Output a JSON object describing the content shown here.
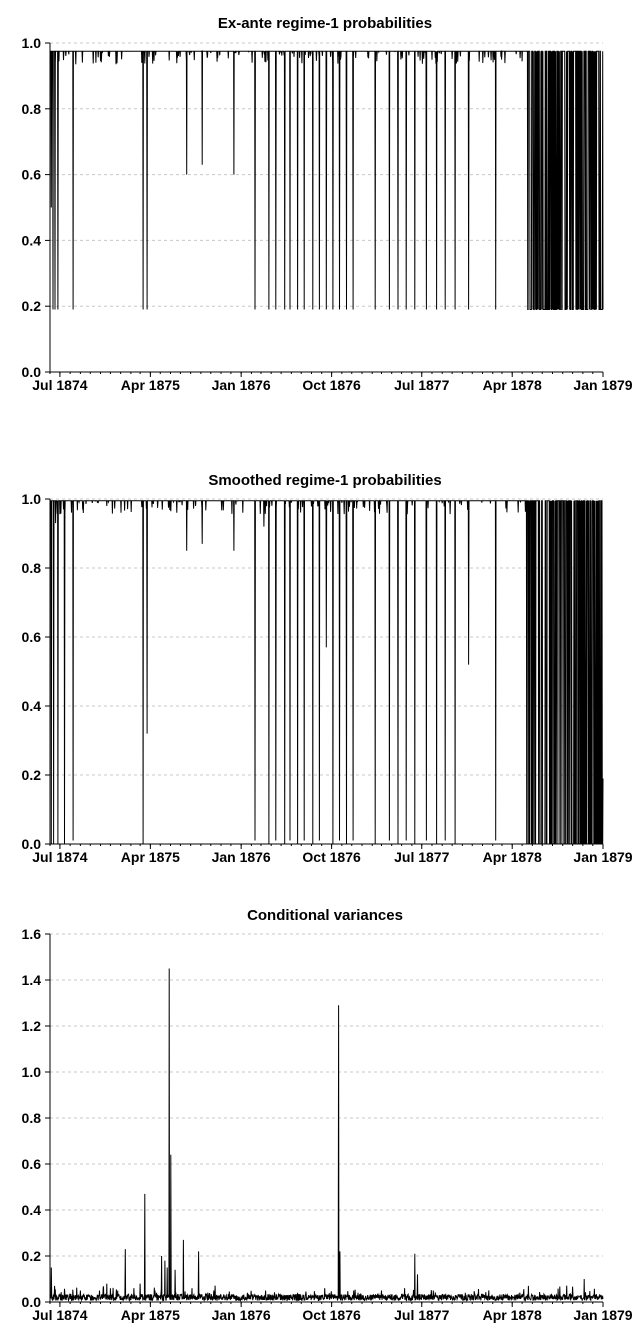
{
  "chart_data": [
    {
      "type": "line",
      "title": "Ex-ante regime-1 probabilities",
      "x_ticks": [
        "Jul 1874",
        "Apr 1875",
        "Jan 1876",
        "Oct 1876",
        "Jul 1877",
        "Apr 1878",
        "Jan 1879"
      ],
      "y_ticks": [
        "0.0",
        "0.2",
        "0.4",
        "0.6",
        "0.8",
        "1.0"
      ],
      "ylim": [
        0,
        1.0
      ],
      "xlim": [
        "1874-06",
        "1879-01"
      ],
      "grid": true,
      "series": [
        {
          "baseline": 0.975,
          "drops": [
            [
              "1874-06-05",
              0.5
            ],
            [
              "1874-06-10",
              0.19
            ],
            [
              "1874-06-16",
              0.19
            ],
            [
              "1874-06-25",
              0.19
            ],
            [
              "1874-08-10",
              0.19
            ],
            [
              "1875-03-10",
              0.19
            ],
            [
              "1875-03-22",
              0.19
            ],
            [
              "1875-07-20",
              0.6
            ],
            [
              "1875-09-05",
              0.63
            ],
            [
              "1875-12-10",
              0.6
            ],
            [
              "1876-02-12",
              0.19
            ],
            [
              "1876-03-25",
              0.19
            ],
            [
              "1876-04-15",
              0.19
            ],
            [
              "1876-05-12",
              0.19
            ],
            [
              "1876-05-28",
              0.19
            ],
            [
              "1876-06-20",
              0.19
            ],
            [
              "1876-07-10",
              0.19
            ],
            [
              "1876-08-05",
              0.19
            ],
            [
              "1876-08-25",
              0.19
            ],
            [
              "1876-09-15",
              0.19
            ],
            [
              "1876-10-05",
              0.19
            ],
            [
              "1876-10-25",
              0.19
            ],
            [
              "1876-11-15",
              0.19
            ],
            [
              "1876-12-05",
              0.19
            ],
            [
              "1877-02-10",
              0.19
            ],
            [
              "1877-03-25",
              0.19
            ],
            [
              "1877-04-20",
              0.19
            ],
            [
              "1877-05-15",
              0.19
            ],
            [
              "1877-06-10",
              0.19
            ],
            [
              "1877-07-15",
              0.19
            ],
            [
              "1877-08-15",
              0.19
            ],
            [
              "1877-09-10",
              0.19
            ],
            [
              "1877-10-10",
              0.19
            ],
            [
              "1877-11-20",
              0.19
            ],
            [
              "1878-02-10",
              0.19
            ]
          ],
          "dense_oscillation": {
            "from": "1878-05-15",
            "to": "1879-01-01",
            "low": 0.19,
            "high": 0.975
          }
        }
      ]
    },
    {
      "type": "line",
      "title": "Smoothed regime-1 probabilities",
      "x_ticks": [
        "Jul 1874",
        "Apr 1875",
        "Jan 1876",
        "Oct 1876",
        "Jul 1877",
        "Apr 1878",
        "Jan 1879"
      ],
      "y_ticks": [
        "0.0",
        "0.2",
        "0.4",
        "0.6",
        "0.8",
        "1.0"
      ],
      "ylim": [
        0,
        1.0
      ],
      "xlim": [
        "1874-06",
        "1879-01"
      ],
      "grid": true,
      "series": [
        {
          "baseline": 0.995,
          "drops": [
            [
              "1874-06-05",
              0.0
            ],
            [
              "1874-06-12",
              0.0
            ],
            [
              "1874-06-18",
              0.93
            ],
            [
              "1874-06-25",
              0.0
            ],
            [
              "1874-07-15",
              0.0
            ],
            [
              "1874-08-10",
              0.01
            ],
            [
              "1875-03-10",
              0.0
            ],
            [
              "1875-03-22",
              0.32
            ],
            [
              "1875-07-20",
              0.85
            ],
            [
              "1875-09-05",
              0.87
            ],
            [
              "1875-12-10",
              0.85
            ],
            [
              "1876-02-12",
              0.01
            ],
            [
              "1876-03-10",
              0.92
            ],
            [
              "1876-03-25",
              0.0
            ],
            [
              "1876-04-15",
              0.01
            ],
            [
              "1876-05-12",
              0.0
            ],
            [
              "1876-05-28",
              0.01
            ],
            [
              "1876-06-20",
              0.0
            ],
            [
              "1876-07-10",
              0.01
            ],
            [
              "1876-08-05",
              0.0
            ],
            [
              "1876-08-25",
              0.01
            ],
            [
              "1876-09-15",
              0.57
            ],
            [
              "1876-10-05",
              0.0
            ],
            [
              "1876-10-25",
              0.01
            ],
            [
              "1876-11-15",
              0.0
            ],
            [
              "1876-12-05",
              0.01
            ],
            [
              "1877-02-10",
              0.0
            ],
            [
              "1877-03-25",
              0.01
            ],
            [
              "1877-04-20",
              0.0
            ],
            [
              "1877-05-15",
              0.01
            ],
            [
              "1877-06-10",
              0.0
            ],
            [
              "1877-07-15",
              0.01
            ],
            [
              "1877-08-15",
              0.0
            ],
            [
              "1877-09-10",
              0.01
            ],
            [
              "1877-10-10",
              0.0
            ],
            [
              "1877-11-20",
              0.52
            ],
            [
              "1878-02-10",
              0.01
            ]
          ],
          "dense_oscillation": {
            "from": "1878-05-15",
            "to": "1879-01-01",
            "low": 0.0,
            "high": 0.995
          },
          "end_value": 0.19
        }
      ]
    },
    {
      "type": "line",
      "title": "Conditional variances",
      "x_ticks": [
        "Jul 1874",
        "Apr 1875",
        "Jan 1876",
        "Oct 1876",
        "Jul 1877",
        "Apr 1878",
        "Jan 1879"
      ],
      "y_ticks": [
        "0.0",
        "0.2",
        "0.4",
        "0.6",
        "0.8",
        "1.0",
        "1.2",
        "1.4",
        "1.6"
      ],
      "ylim": [
        0,
        1.6
      ],
      "xlim": [
        "1874-06",
        "1879-01"
      ],
      "grid": true,
      "series": [
        {
          "baseline": 0.02,
          "spikes": [
            [
              "1874-06-05",
              0.15
            ],
            [
              "1874-06-15",
              0.07
            ],
            [
              "1874-09-01",
              0.05
            ],
            [
              "1874-11-20",
              0.08
            ],
            [
              "1875-01-15",
              0.23
            ],
            [
              "1875-02-10",
              0.06
            ],
            [
              "1875-03-01",
              0.08
            ],
            [
              "1875-03-15",
              0.47
            ],
            [
              "1875-04-20",
              0.04
            ],
            [
              "1875-05-05",
              0.2
            ],
            [
              "1875-05-15",
              0.18
            ],
            [
              "1875-05-22",
              0.15
            ],
            [
              "1875-05-28",
              1.45
            ],
            [
              "1875-06-02",
              0.64
            ],
            [
              "1875-06-15",
              0.14
            ],
            [
              "1875-07-10",
              0.27
            ],
            [
              "1875-08-05",
              0.06
            ],
            [
              "1875-08-25",
              0.22
            ],
            [
              "1875-10-10",
              0.05
            ],
            [
              "1876-01-20",
              0.04
            ],
            [
              "1876-03-15",
              0.05
            ],
            [
              "1876-06-20",
              0.04
            ],
            [
              "1876-09-10",
              0.06
            ],
            [
              "1876-10-22",
              1.29
            ],
            [
              "1876-10-26",
              0.22
            ],
            [
              "1876-12-20",
              0.04
            ],
            [
              "1877-03-01",
              0.05
            ],
            [
              "1877-05-10",
              0.06
            ],
            [
              "1877-06-10",
              0.21
            ],
            [
              "1877-06-18",
              0.12
            ],
            [
              "1877-08-05",
              0.05
            ],
            [
              "1877-11-10",
              0.04
            ],
            [
              "1878-05-20",
              0.07
            ],
            [
              "1878-11-05",
              0.1
            ],
            [
              "1878-11-20",
              0.03
            ]
          ]
        }
      ]
    }
  ]
}
